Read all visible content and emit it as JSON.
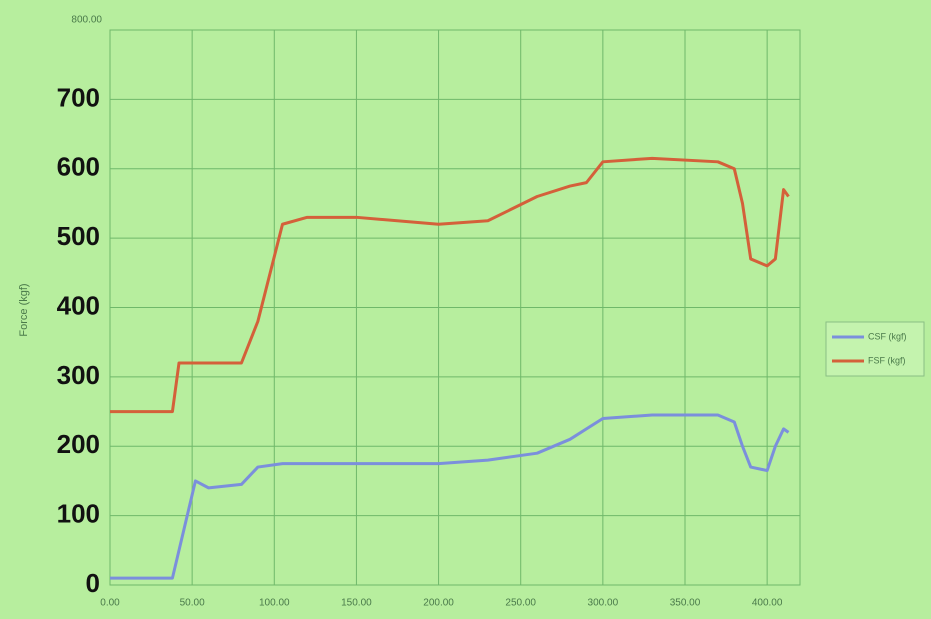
{
  "chart_data": {
    "type": "line",
    "y_axis_label": "Force (kgf)",
    "x": [
      0,
      38,
      42,
      45,
      52,
      60,
      80,
      90,
      105,
      120,
      150,
      200,
      230,
      260,
      280,
      290,
      300,
      330,
      370,
      380,
      385,
      390,
      400,
      405,
      410,
      413
    ],
    "series": [
      {
        "name": "CSF (kgf)",
        "color": "#7b8fdc",
        "values": [
          10,
          10,
          50,
          80,
          150,
          140,
          145,
          170,
          175,
          175,
          175,
          175,
          180,
          190,
          210,
          225,
          240,
          245,
          245,
          235,
          200,
          170,
          165,
          200,
          225,
          220
        ]
      },
      {
        "name": "FSF (kgf)",
        "color": "#d4603a",
        "values": [
          250,
          250,
          320,
          320,
          320,
          320,
          320,
          380,
          520,
          530,
          530,
          520,
          525,
          560,
          575,
          580,
          610,
          615,
          610,
          600,
          550,
          470,
          460,
          470,
          570,
          560
        ]
      }
    ],
    "xlim": [
      0,
      420
    ],
    "ylim": [
      0,
      800
    ],
    "xticks": [
      {
        "value": 0,
        "label": "0.00"
      },
      {
        "value": 50,
        "label": "50.00"
      },
      {
        "value": 100,
        "label": "100.00"
      },
      {
        "value": 150,
        "label": "150.00"
      },
      {
        "value": 200,
        "label": "200.00"
      },
      {
        "value": 250,
        "label": "250.00"
      },
      {
        "value": 300,
        "label": "300.00"
      },
      {
        "value": 350,
        "label": "350.00"
      },
      {
        "value": 400,
        "label": "400.00"
      }
    ],
    "yticks": [
      0,
      100,
      200,
      300,
      400,
      500,
      600,
      700,
      {
        "value": 800,
        "label": "800.00"
      }
    ],
    "grid": true,
    "legend": "right"
  }
}
